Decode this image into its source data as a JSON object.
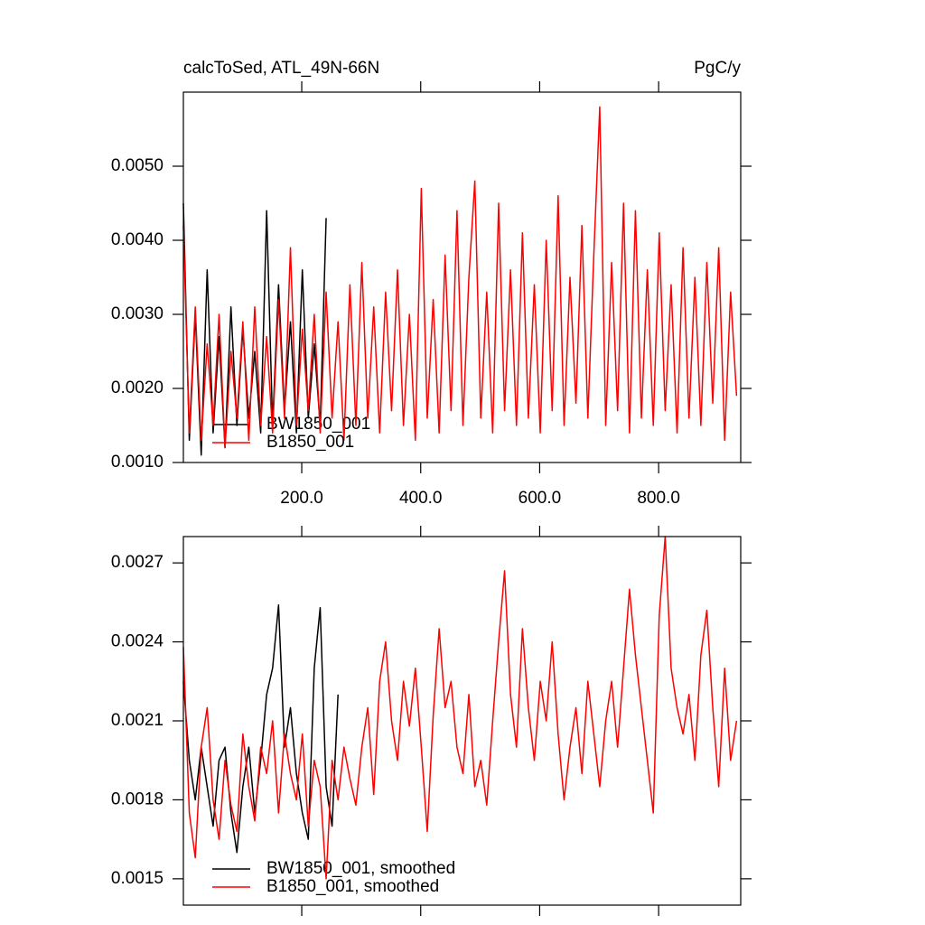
{
  "chart_data": [
    {
      "type": "line",
      "left_title": "calcToSed, ATL_49N-66N",
      "right_title": "PgC/y",
      "xlim": [
        1,
        938
      ],
      "xticks": [
        {
          "value": 200,
          "label": "200.0"
        },
        {
          "value": 400,
          "label": "400.0"
        },
        {
          "value": 600,
          "label": "600.0"
        },
        {
          "value": 800,
          "label": "800.0"
        }
      ],
      "ylim": [
        0.001,
        0.006
      ],
      "yticks": [
        {
          "value": 0.001,
          "label": "0.0010"
        },
        {
          "value": 0.002,
          "label": "0.0020"
        },
        {
          "value": 0.003,
          "label": "0.0030"
        },
        {
          "value": 0.004,
          "label": "0.0040"
        },
        {
          "value": 0.005,
          "label": "0.0050"
        }
      ],
      "series": [
        {
          "name": "BW1850_001",
          "color": "#000000",
          "x": [
            1,
            11,
            21,
            31,
            41,
            51,
            61,
            71,
            81,
            91,
            101,
            111,
            121,
            131,
            141,
            151,
            161,
            171,
            181,
            191,
            201,
            211,
            221,
            231,
            241
          ],
          "values": [
            0.0045,
            0.0013,
            0.003,
            0.0011,
            0.0036,
            0.0014,
            0.0027,
            0.0012,
            0.0031,
            0.0015,
            0.0028,
            0.0016,
            0.0025,
            0.0014,
            0.0044,
            0.0015,
            0.0034,
            0.0017,
            0.0029,
            0.0014,
            0.0036,
            0.0016,
            0.0026,
            0.0015,
            0.0043
          ]
        },
        {
          "name": "B1850_001",
          "color": "#ff0000",
          "x": [
            1,
            11,
            21,
            31,
            41,
            51,
            61,
            71,
            81,
            91,
            101,
            111,
            121,
            131,
            141,
            151,
            161,
            171,
            181,
            191,
            201,
            211,
            221,
            231,
            241,
            251,
            261,
            271,
            281,
            291,
            301,
            311,
            321,
            331,
            341,
            351,
            361,
            371,
            381,
            391,
            401,
            411,
            421,
            431,
            441,
            451,
            461,
            471,
            481,
            491,
            501,
            511,
            521,
            531,
            541,
            551,
            561,
            571,
            581,
            591,
            601,
            611,
            621,
            631,
            641,
            651,
            661,
            671,
            681,
            691,
            701,
            711,
            721,
            731,
            741,
            751,
            761,
            771,
            781,
            791,
            801,
            811,
            821,
            831,
            841,
            851,
            861,
            871,
            881,
            891,
            901,
            911,
            921,
            931
          ],
          "values": [
            0.0042,
            0.0014,
            0.0031,
            0.0013,
            0.0026,
            0.0015,
            0.003,
            0.0012,
            0.0025,
            0.0016,
            0.0029,
            0.0013,
            0.0031,
            0.0015,
            0.0027,
            0.0014,
            0.0032,
            0.0016,
            0.0039,
            0.0015,
            0.0028,
            0.0017,
            0.003,
            0.0014,
            0.0033,
            0.0016,
            0.0029,
            0.0013,
            0.0034,
            0.0015,
            0.0037,
            0.0016,
            0.0031,
            0.0014,
            0.0033,
            0.0017,
            0.0036,
            0.0015,
            0.003,
            0.0013,
            0.0047,
            0.0016,
            0.0032,
            0.0014,
            0.0038,
            0.0017,
            0.0044,
            0.0015,
            0.0035,
            0.0048,
            0.0016,
            0.0033,
            0.0014,
            0.0045,
            0.0017,
            0.0036,
            0.0015,
            0.0041,
            0.0016,
            0.0034,
            0.0014,
            0.004,
            0.0017,
            0.0046,
            0.0015,
            0.0035,
            0.0018,
            0.0042,
            0.0016,
            0.0038,
            0.0058,
            0.0015,
            0.0037,
            0.0017,
            0.0045,
            0.0014,
            0.0044,
            0.0016,
            0.0036,
            0.0015,
            0.0041,
            0.0017,
            0.0034,
            0.0014,
            0.0039,
            0.0016,
            0.0035,
            0.0015,
            0.0037,
            0.0018,
            0.0039,
            0.0013,
            0.0033,
            0.0019
          ]
        }
      ]
    },
    {
      "type": "line",
      "xlim": [
        1,
        938
      ],
      "xticks": [
        200,
        400,
        600,
        800
      ],
      "ylim": [
        0.0014,
        0.0028
      ],
      "yticks": [
        0.0015,
        0.0018,
        0.0021,
        0.0024,
        0.0027
      ],
      "series": [
        {
          "name": "BW1850_001, smoothed",
          "color": "#000000",
          "x": [
            1,
            11,
            21,
            31,
            41,
            51,
            61,
            71,
            81,
            91,
            101,
            111,
            121,
            131,
            141,
            151,
            161,
            171,
            181,
            191,
            201,
            211,
            221,
            231,
            241,
            251,
            261
          ],
          "values": [
            0.00225,
            0.00195,
            0.0018,
            0.002,
            0.00185,
            0.0017,
            0.00195,
            0.002,
            0.00175,
            0.0016,
            0.00185,
            0.002,
            0.00175,
            0.00195,
            0.0022,
            0.0023,
            0.00254,
            0.002,
            0.00215,
            0.0019,
            0.00175,
            0.00165,
            0.0023,
            0.00253,
            0.00185,
            0.0017,
            0.0022
          ]
        },
        {
          "name": "B1850_001, smoothed",
          "color": "#ff0000",
          "x": [
            1,
            11,
            21,
            31,
            41,
            51,
            61,
            71,
            81,
            91,
            101,
            111,
            121,
            131,
            141,
            151,
            161,
            171,
            181,
            191,
            201,
            211,
            221,
            231,
            241,
            251,
            261,
            271,
            281,
            291,
            301,
            311,
            321,
            331,
            341,
            351,
            361,
            371,
            381,
            391,
            401,
            411,
            421,
            431,
            441,
            451,
            461,
            471,
            481,
            491,
            501,
            511,
            521,
            531,
            541,
            551,
            561,
            571,
            581,
            591,
            601,
            611,
            621,
            631,
            641,
            651,
            661,
            671,
            681,
            691,
            701,
            711,
            721,
            731,
            741,
            751,
            761,
            771,
            781,
            791,
            801,
            811,
            821,
            831,
            841,
            851,
            861,
            871,
            881,
            891,
            901,
            911,
            921,
            931
          ],
          "values": [
            0.00238,
            0.00175,
            0.00158,
            0.002,
            0.00215,
            0.0018,
            0.00165,
            0.00195,
            0.00178,
            0.00168,
            0.00205,
            0.00185,
            0.00172,
            0.002,
            0.0019,
            0.0021,
            0.00175,
            0.00205,
            0.0019,
            0.0018,
            0.00205,
            0.0017,
            0.00195,
            0.00185,
            0.0015,
            0.00195,
            0.0018,
            0.002,
            0.00188,
            0.00178,
            0.002,
            0.00215,
            0.00182,
            0.00225,
            0.0024,
            0.0021,
            0.00195,
            0.00225,
            0.00208,
            0.0023,
            0.002,
            0.00168,
            0.00212,
            0.00245,
            0.00215,
            0.00225,
            0.002,
            0.0019,
            0.0022,
            0.00185,
            0.00195,
            0.00178,
            0.0021,
            0.0024,
            0.00267,
            0.0022,
            0.002,
            0.00245,
            0.00215,
            0.00195,
            0.00225,
            0.0021,
            0.0024,
            0.00205,
            0.0018,
            0.002,
            0.00215,
            0.0019,
            0.00225,
            0.00205,
            0.00185,
            0.0021,
            0.00225,
            0.002,
            0.0023,
            0.0026,
            0.00235,
            0.00215,
            0.00195,
            0.00175,
            0.0025,
            0.0028,
            0.0023,
            0.00215,
            0.00205,
            0.0022,
            0.00195,
            0.00235,
            0.00252,
            0.00215,
            0.00185,
            0.0023,
            0.00195,
            0.0021
          ]
        }
      ]
    }
  ]
}
